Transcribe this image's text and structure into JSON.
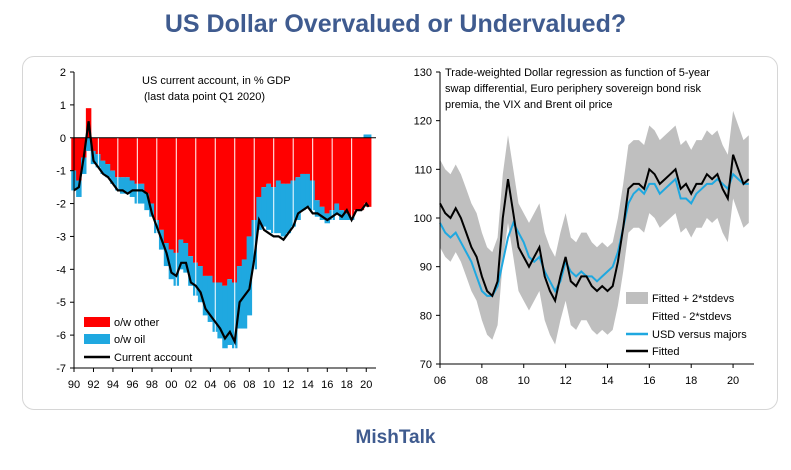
{
  "title": "US Dollar Overvalued or Undervalued?",
  "footer": "MishTalk",
  "colors": {
    "title": "#3f5b8f",
    "other": "#ff0000",
    "oil": "#1fa8e0",
    "current": "#000000",
    "band": "#bfbfbf",
    "usd": "#1fa8e0",
    "fitted": "#000000"
  },
  "chart_data": [
    {
      "type": "bar",
      "annotation_line1": "US current account, in % GDP",
      "annotation_line2": "(last data point Q1 2020)",
      "x_tick_labels": [
        "90",
        "92",
        "94",
        "96",
        "98",
        "00",
        "02",
        "04",
        "06",
        "08",
        "10",
        "12",
        "14",
        "16",
        "18",
        "20"
      ],
      "y_ticks": [
        2,
        1,
        0,
        -1,
        -2,
        -3,
        -4,
        -5,
        -6,
        -7
      ],
      "ylim": [
        -7,
        2
      ],
      "xlim": [
        1990,
        2021
      ],
      "legend": [
        "o/w other",
        "o/w oil",
        "Current account"
      ],
      "legend_placement": "bottom-left",
      "x": [
        1990,
        1990.5,
        1991,
        1991.5,
        1992,
        1992.5,
        1993,
        1993.5,
        1994,
        1994.5,
        1995,
        1995.5,
        1996,
        1996.5,
        1997,
        1997.5,
        1998,
        1998.5,
        1999,
        1999.5,
        2000,
        2000.5,
        2001,
        2001.5,
        2002,
        2002.5,
        2003,
        2003.5,
        2004,
        2004.5,
        2005,
        2005.5,
        2006,
        2006.5,
        2007,
        2007.5,
        2008,
        2008.5,
        2009,
        2009.5,
        2010,
        2010.5,
        2011,
        2011.5,
        2012,
        2012.5,
        2013,
        2013.5,
        2014,
        2014.5,
        2015,
        2015.5,
        2016,
        2016.5,
        2017,
        2017.5,
        2018,
        2018.5,
        2019,
        2019.5,
        2020,
        2020.25
      ],
      "series": [
        {
          "name": "o/w other",
          "values": [
            -1.0,
            -1.3,
            -0.6,
            0.9,
            -0.4,
            -0.5,
            -0.7,
            -0.8,
            -1.0,
            -1.2,
            -1.2,
            -1.2,
            -1.3,
            -1.4,
            -1.4,
            -1.7,
            -2.0,
            -2.5,
            -2.8,
            -3.2,
            -3.4,
            -3.5,
            -3.1,
            -3.2,
            -3.6,
            -3.8,
            -3.9,
            -4.2,
            -4.2,
            -4.4,
            -4.4,
            -4.5,
            -4.3,
            -4.4,
            -3.9,
            -3.7,
            -3.0,
            -2.5,
            -1.8,
            -1.5,
            -1.4,
            -1.5,
            -1.3,
            -1.4,
            -1.4,
            -1.3,
            -1.2,
            -1.1,
            -1.1,
            -1.3,
            -1.9,
            -2.1,
            -2.3,
            -2.2,
            -2.0,
            -2.2,
            -2.3,
            -2.4,
            -2.2,
            -2.2,
            -2.0,
            -2.1
          ]
        },
        {
          "name": "o/w oil",
          "values": [
            -0.6,
            -0.5,
            -0.5,
            -0.4,
            -0.4,
            -0.4,
            -0.4,
            -0.4,
            -0.4,
            -0.4,
            -0.5,
            -0.5,
            -0.5,
            -0.6,
            -0.6,
            -0.5,
            -0.4,
            -0.4,
            -0.6,
            -0.7,
            -0.9,
            -1.0,
            -0.9,
            -0.9,
            -0.9,
            -1.0,
            -1.1,
            -1.2,
            -1.4,
            -1.5,
            -1.7,
            -1.9,
            -2.0,
            -2.0,
            -1.9,
            -2.1,
            -2.4,
            -1.5,
            -1.0,
            -1.2,
            -1.4,
            -1.4,
            -1.6,
            -1.6,
            -1.5,
            -1.4,
            -1.3,
            -1.1,
            -1.0,
            -0.9,
            -0.5,
            -0.4,
            -0.3,
            -0.3,
            -0.3,
            -0.3,
            -0.2,
            -0.1,
            0.0,
            0.0,
            0.1,
            0.1
          ]
        },
        {
          "name": "Current account",
          "values": [
            -1.6,
            -1.5,
            -0.6,
            0.5,
            -0.7,
            -0.9,
            -1.1,
            -1.2,
            -1.4,
            -1.6,
            -1.6,
            -1.7,
            -1.6,
            -1.6,
            -1.6,
            -1.7,
            -2.3,
            -2.7,
            -3.1,
            -3.5,
            -4.1,
            -4.2,
            -3.8,
            -3.8,
            -4.4,
            -4.5,
            -4.7,
            -5.2,
            -5.4,
            -5.6,
            -5.8,
            -6.1,
            -5.9,
            -6.2,
            -5.0,
            -4.8,
            -4.6,
            -3.7,
            -2.5,
            -2.8,
            -2.9,
            -3.0,
            -3.0,
            -3.1,
            -2.9,
            -2.7,
            -2.3,
            -2.2,
            -2.1,
            -2.3,
            -2.3,
            -2.4,
            -2.5,
            -2.4,
            -2.3,
            -2.4,
            -2.2,
            -2.5,
            -2.2,
            -2.2,
            -2.0,
            -2.1
          ]
        }
      ]
    },
    {
      "type": "line",
      "annotation_lines": [
        "Trade-weighted Dollar regression as function of 5-year",
        "swap differential, Euro periphery sovereign bond risk",
        "premia, the VIX and Brent oil price"
      ],
      "x_tick_labels": [
        "06",
        "08",
        "10",
        "12",
        "14",
        "16",
        "18",
        "20"
      ],
      "y_ticks": [
        130,
        120,
        110,
        100,
        90,
        80,
        70
      ],
      "ylim": [
        70,
        130
      ],
      "xlim": [
        2006,
        2021
      ],
      "legend": [
        "Fitted + 2*stdevs",
        "Fitted - 2*stdevs",
        "USD versus majors",
        "Fitted"
      ],
      "legend_placement": "bottom-right",
      "x": [
        2006,
        2006.25,
        2006.5,
        2006.75,
        2007,
        2007.25,
        2007.5,
        2007.75,
        2008,
        2008.25,
        2008.5,
        2008.75,
        2009,
        2009.25,
        2009.5,
        2009.75,
        2010,
        2010.25,
        2010.5,
        2010.75,
        2011,
        2011.25,
        2011.5,
        2011.75,
        2012,
        2012.25,
        2012.5,
        2012.75,
        2013,
        2013.25,
        2013.5,
        2013.75,
        2014,
        2014.25,
        2014.5,
        2014.75,
        2015,
        2015.25,
        2015.5,
        2015.75,
        2016,
        2016.25,
        2016.5,
        2016.75,
        2017,
        2017.25,
        2017.5,
        2017.75,
        2018,
        2018.25,
        2018.5,
        2018.75,
        2019,
        2019.25,
        2019.5,
        2019.75,
        2020,
        2020.25,
        2020.5,
        2020.75
      ],
      "series": [
        {
          "name": "Fitted",
          "values": [
            103,
            101,
            100,
            102,
            100,
            97,
            94,
            92,
            88,
            85,
            84,
            87,
            100,
            108,
            101,
            94,
            92,
            90,
            92,
            94,
            88,
            85,
            83,
            88,
            92,
            87,
            86,
            88,
            88,
            86,
            85,
            86,
            85,
            86,
            91,
            98,
            106,
            107,
            107,
            106,
            110,
            109,
            107,
            108,
            109,
            110,
            106,
            107,
            105,
            107,
            107,
            109,
            108,
            109,
            106,
            104,
            113,
            110,
            107,
            108
          ]
        },
        {
          "name": "USD versus majors",
          "values": [
            99,
            97,
            96,
            97,
            95,
            93,
            91,
            88,
            85,
            84,
            84,
            86,
            91,
            96,
            99,
            97,
            95,
            92,
            91,
            92,
            89,
            87,
            85,
            87,
            91,
            89,
            88,
            89,
            88,
            88,
            87,
            88,
            89,
            90,
            93,
            98,
            103,
            105,
            106,
            105,
            107,
            107,
            105,
            106,
            107,
            108,
            104,
            104,
            103,
            105,
            106,
            107,
            107,
            108,
            107,
            106,
            109,
            108,
            107,
            107
          ]
        },
        {
          "name": "Fitted + 2*stdevs",
          "values": [
            112,
            110,
            109,
            111,
            109,
            106,
            103,
            101,
            97,
            94,
            93,
            96,
            109,
            117,
            110,
            103,
            101,
            99,
            101,
            103,
            97,
            94,
            92,
            97,
            101,
            96,
            95,
            97,
            97,
            95,
            94,
            95,
            94,
            95,
            100,
            107,
            115,
            116,
            116,
            115,
            119,
            118,
            116,
            117,
            118,
            119,
            115,
            116,
            114,
            116,
            116,
            118,
            117,
            118,
            115,
            113,
            122,
            119,
            116,
            117
          ]
        },
        {
          "name": "Fitted - 2*stdevs",
          "values": [
            94,
            92,
            91,
            93,
            91,
            88,
            85,
            83,
            79,
            76,
            75,
            78,
            91,
            99,
            92,
            85,
            83,
            81,
            83,
            85,
            79,
            76,
            74,
            79,
            83,
            78,
            77,
            79,
            79,
            77,
            76,
            77,
            76,
            77,
            82,
            89,
            97,
            98,
            98,
            97,
            101,
            100,
            98,
            99,
            100,
            101,
            97,
            98,
            96,
            98,
            98,
            100,
            99,
            100,
            97,
            95,
            104,
            101,
            98,
            99
          ]
        }
      ]
    }
  ]
}
